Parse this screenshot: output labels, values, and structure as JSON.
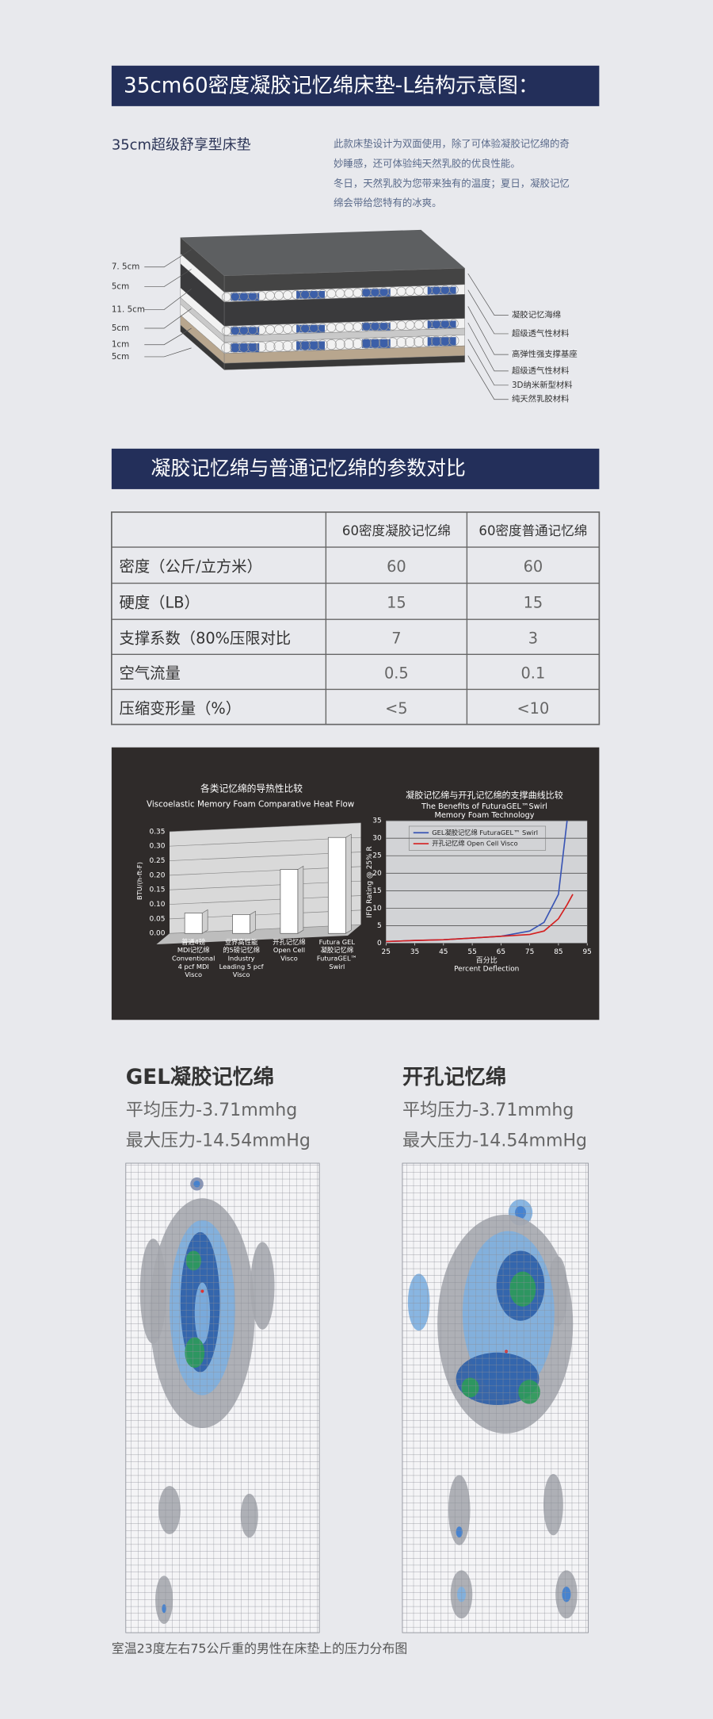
{
  "header": {
    "title": "35cm60密度凝胶记忆绵床垫-L结构示意图：",
    "subtitle": "35cm超级舒享型床垫",
    "description": [
      "此款床垫设计为双面使用，除了可体验凝胶记忆绵的奇",
      "妙睡感，还可体验纯天然乳胶的优良性能。",
      "冬日，天然乳胶为您带来独有的温度；夏日，凝胶记忆",
      "绵会带给您特有的冰爽。"
    ]
  },
  "structure": {
    "thickness": [
      "7. 5cm",
      "5cm",
      "11. 5cm",
      "5cm",
      "1cm",
      "5cm"
    ],
    "materials": [
      "凝胶记忆海绵",
      "超级透气性材料",
      "高弹性强支撑基座",
      "超级透气性材料",
      "3D纳米新型材料",
      "纯天然乳胶材料"
    ]
  },
  "comparison": {
    "title": "凝胶记忆绵与普通记忆绵的参数对比",
    "columns": [
      "60密度凝胶记忆绵",
      "60密度普通记忆绵"
    ],
    "rows": [
      [
        "密度（公斤/立方米）",
        60,
        60
      ],
      [
        "硬度（LB）",
        15,
        15
      ],
      [
        "支撑系数（80%压限对比",
        7,
        3
      ],
      [
        "空气流量",
        0.5,
        0.1
      ],
      [
        "压缩变形量（%）",
        "<5",
        "<10"
      ]
    ]
  },
  "chart_data": [
    {
      "type": "bar",
      "title": "各类记忆绵的导热性比较",
      "subtitle": "Viscoelastic Memory Foam Comparative Heat Flow",
      "y_label": "BTU/(h-ft-F)",
      "categories": [
        [
          "普通4磅",
          "MDI记忆绵",
          "Conventional",
          "4 pcf MDI",
          "Visco"
        ],
        [
          "业界高性能",
          "的5磅记忆绵",
          "Industry",
          "Leading 5 pcf",
          "Visco"
        ],
        [
          "开孔记忆绵",
          "Open Cell",
          "Visco"
        ],
        [
          "Futura GEL",
          "凝胶记忆绵",
          "FuturaGEL™",
          "Swirl"
        ]
      ],
      "values": [
        0.07,
        0.065,
        0.22,
        0.33
      ],
      "color": "#ffffff",
      "ylim": [
        0,
        0.35
      ],
      "yticks": [
        {
          "value": 0,
          "label": "0.00"
        },
        0.05,
        {
          "value": 0.1,
          "label": "0.10"
        },
        0.15,
        {
          "value": 0.2,
          "label": "0.20"
        },
        0.25,
        {
          "value": 0.3,
          "label": "0.30"
        },
        0.35
      ],
      "grid": true
    },
    {
      "type": "line",
      "title": "凝胶记忆绵与开孔记忆绵的支撑曲线比较",
      "subtitle": [
        "The Benefits of FuturaGEL™Swirl",
        "Memory Foam Technology"
      ],
      "x_label": [
        "百分比",
        "Percent Deflection"
      ],
      "y_label": "IFD Rating @ 25% R",
      "x": [
        25,
        35,
        45,
        55,
        65,
        75,
        80,
        85,
        88,
        90
      ],
      "series": [
        {
          "name": "GEL凝胶记忆绵  FuturaGEL™ Swirl",
          "color": "#3a55b4",
          "values": [
            0.5,
            0.8,
            1,
            1.5,
            2,
            3.5,
            6,
            14,
            35,
            null
          ]
        },
        {
          "name": "开孔记忆绵  Open Cell Visco",
          "color": "#d42020",
          "values": [
            0.5,
            0.8,
            1,
            1.5,
            2,
            2.5,
            3.5,
            7,
            11,
            14
          ]
        }
      ],
      "xlim": [
        25,
        95
      ],
      "ylim": [
        0,
        35
      ],
      "xticks": [
        25,
        35,
        45,
        55,
        65,
        75,
        85,
        95
      ],
      "yticks": [
        0,
        5,
        10,
        15,
        20,
        25,
        30,
        35
      ],
      "grid": true,
      "legend": "top-left"
    }
  ],
  "pressure": {
    "maps": [
      {
        "title": "GEL凝胶记忆绵",
        "lines": [
          "平均压力-3.71mmhg",
          "最大压力-14.54mmHg"
        ]
      },
      {
        "title": "开孔记忆绵",
        "lines": [
          "平均压力-3.71mmhg",
          "最大压力-14.54mmHg"
        ]
      }
    ],
    "caption": "室温23度左右75公斤重的男性在床垫上的压力分布图"
  }
}
